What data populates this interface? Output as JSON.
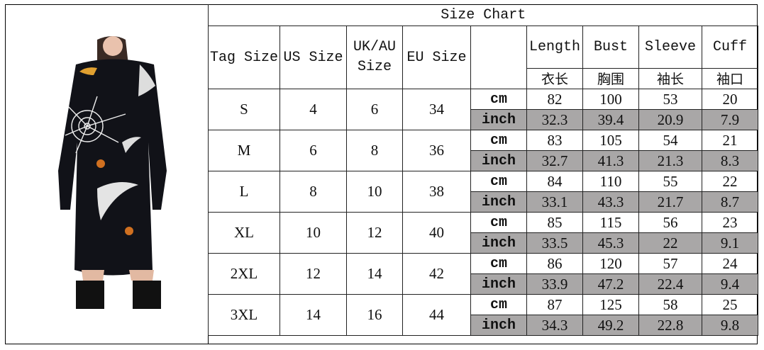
{
  "title": "Size Chart",
  "headers": {
    "tag_size": "Tag Size",
    "us_size": "US Size",
    "uk_au_size": "UK/AU Size",
    "eu_size": "EU Size",
    "measures": [
      {
        "en": "Length",
        "zh": "衣长"
      },
      {
        "en": "Bust",
        "zh": "胸围"
      },
      {
        "en": "Sleeve",
        "zh": "袖长"
      },
      {
        "en": "Cuff",
        "zh": "袖口"
      }
    ]
  },
  "units": {
    "cm": "cm",
    "inch": "inch"
  },
  "rows": [
    {
      "tag": "S",
      "us": "4",
      "uk": "6",
      "eu": "34",
      "cm": [
        "82",
        "100",
        "53",
        "20"
      ],
      "inch": [
        "32.3",
        "39.4",
        "20.9",
        "7.9"
      ]
    },
    {
      "tag": "M",
      "us": "6",
      "uk": "8",
      "eu": "36",
      "cm": [
        "83",
        "105",
        "54",
        "21"
      ],
      "inch": [
        "32.7",
        "41.3",
        "21.3",
        "8.3"
      ]
    },
    {
      "tag": "L",
      "us": "8",
      "uk": "10",
      "eu": "38",
      "cm": [
        "84",
        "110",
        "55",
        "22"
      ],
      "inch": [
        "33.1",
        "43.3",
        "21.7",
        "8.7"
      ]
    },
    {
      "tag": "XL",
      "us": "10",
      "uk": "12",
      "eu": "40",
      "cm": [
        "85",
        "115",
        "56",
        "23"
      ],
      "inch": [
        "33.5",
        "45.3",
        "22",
        "9.1"
      ]
    },
    {
      "tag": "2XL",
      "us": "12",
      "uk": "14",
      "eu": "42",
      "cm": [
        "86",
        "120",
        "57",
        "24"
      ],
      "inch": [
        "33.9",
        "47.2",
        "22.4",
        "9.4"
      ]
    },
    {
      "tag": "3XL",
      "us": "14",
      "uk": "16",
      "eu": "44",
      "cm": [
        "87",
        "125",
        "58",
        "25"
      ],
      "inch": [
        "34.3",
        "49.2",
        "22.8",
        "9.8"
      ]
    }
  ],
  "colors": {
    "inch_row_fill": "#a9a7a7",
    "dress": "#111218"
  }
}
